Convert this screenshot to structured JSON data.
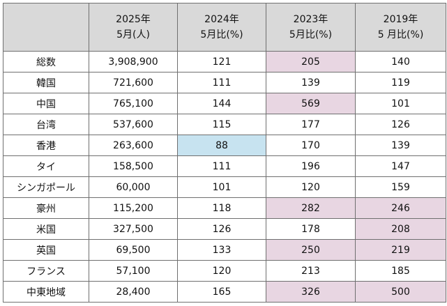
{
  "header": {
    "col0": "",
    "col1": [
      "2025年",
      "5月(人)"
    ],
    "col2": [
      "2024年",
      "5月比(%)"
    ],
    "col3": [
      "2023年",
      "5月比(%)"
    ],
    "col4": [
      "2019年",
      "5 月比(%)"
    ]
  },
  "rows": [
    {
      "name": "総数",
      "v2025": "3,908,900",
      "r2024": "121",
      "r2023": "205",
      "r2019": "140"
    },
    {
      "name": "韓国",
      "v2025": "721,600",
      "r2024": "111",
      "r2023": "139",
      "r2019": "119"
    },
    {
      "name": "中国",
      "v2025": "765,100",
      "r2024": "144",
      "r2023": "569",
      "r2019": "101"
    },
    {
      "name": "台湾",
      "v2025": "537,600",
      "r2024": "115",
      "r2023": "177",
      "r2019": "126"
    },
    {
      "name": "香港",
      "v2025": "263,600",
      "r2024": "88",
      "r2023": "170",
      "r2019": "139"
    },
    {
      "name": "タイ",
      "v2025": "158,500",
      "r2024": "111",
      "r2023": "196",
      "r2019": "147"
    },
    {
      "name": "シンガポール",
      "v2025": "60,000",
      "r2024": "101",
      "r2023": "120",
      "r2019": "159"
    },
    {
      "name": "豪州",
      "v2025": "115,200",
      "r2024": "118",
      "r2023": "282",
      "r2019": "246"
    },
    {
      "name": "米国",
      "v2025": "327,500",
      "r2024": "126",
      "r2023": "178",
      "r2019": "208"
    },
    {
      "name": "英国",
      "v2025": "69,500",
      "r2024": "133",
      "r2023": "250",
      "r2019": "219"
    },
    {
      "name": "フランス",
      "v2025": "57,100",
      "r2024": "120",
      "r2023": "213",
      "r2019": "185"
    },
    {
      "name": "中東地域",
      "v2025": "28,400",
      "r2024": "165",
      "r2023": "326",
      "r2019": "500"
    }
  ],
  "highlight_colors": {
    "high": "#e8d6e2",
    "low": "#c7e3f0",
    "header": "#d9d9d9"
  }
}
